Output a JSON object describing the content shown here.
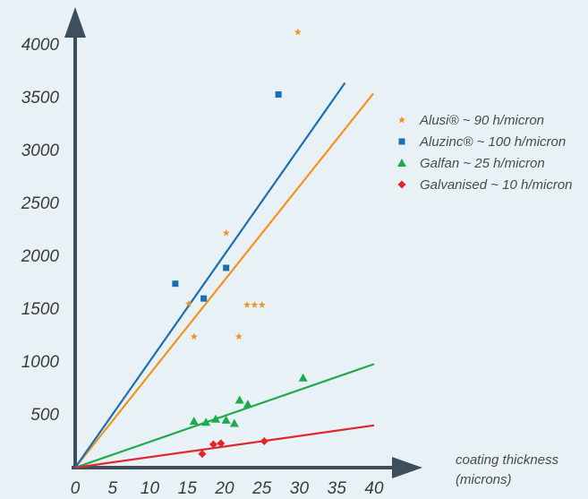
{
  "chart_data": {
    "type": "scatter",
    "title": "",
    "xlabel": [
      "coating thickness",
      "(microns)"
    ],
    "ylabel": "",
    "xlim": [
      0,
      40
    ],
    "ylim": [
      0,
      4000
    ],
    "x_ticks": [
      "0",
      "5",
      "10",
      "15",
      "20",
      "25",
      "30",
      "35",
      "40"
    ],
    "y_ticks": [
      "500",
      "1000",
      "1500",
      "2000",
      "2500",
      "3000",
      "3500",
      "4000"
    ],
    "grid": false,
    "legend_position": "right",
    "series": [
      {
        "name": "Alusi® ~ 90 h/micron",
        "marker": "star",
        "color": "#f0941e",
        "points": [
          [
            15.2,
            1550
          ],
          [
            15.9,
            1240
          ],
          [
            20.2,
            2220
          ],
          [
            21.9,
            1240
          ],
          [
            23,
            1540
          ],
          [
            24,
            1540
          ],
          [
            25,
            1540
          ],
          [
            29.8,
            4120
          ]
        ],
        "trend": [
          [
            0,
            0
          ],
          [
            39.9,
            3540
          ]
        ]
      },
      {
        "name": "Aluzinc® ~ 100 h/micron",
        "marker": "square",
        "color": "#1a6fb3",
        "points": [
          [
            13.4,
            1740
          ],
          [
            17.2,
            1600
          ],
          [
            20.2,
            1890
          ],
          [
            27.2,
            3530
          ]
        ],
        "trend": [
          [
            0,
            0
          ],
          [
            36.1,
            3640
          ]
        ]
      },
      {
        "name": "Galfan ~ 25 h/micron",
        "marker": "triangle",
        "color": "#1faa4b",
        "points": [
          [
            15.9,
            440
          ],
          [
            17.5,
            430
          ],
          [
            18.8,
            460
          ],
          [
            20.2,
            450
          ],
          [
            21.3,
            420
          ],
          [
            22,
            640
          ],
          [
            23.1,
            600
          ],
          [
            30.5,
            850
          ]
        ],
        "trend": [
          [
            0,
            0
          ],
          [
            40,
            980
          ]
        ]
      },
      {
        "name": "Galvanised ~ 10 h/micron",
        "marker": "diamond",
        "color": "#e3262b",
        "points": [
          [
            17,
            130
          ],
          [
            18.5,
            220
          ],
          [
            19.5,
            230
          ],
          [
            25.3,
            250
          ]
        ],
        "trend": [
          [
            0,
            0
          ],
          [
            40,
            400
          ]
        ]
      }
    ]
  }
}
